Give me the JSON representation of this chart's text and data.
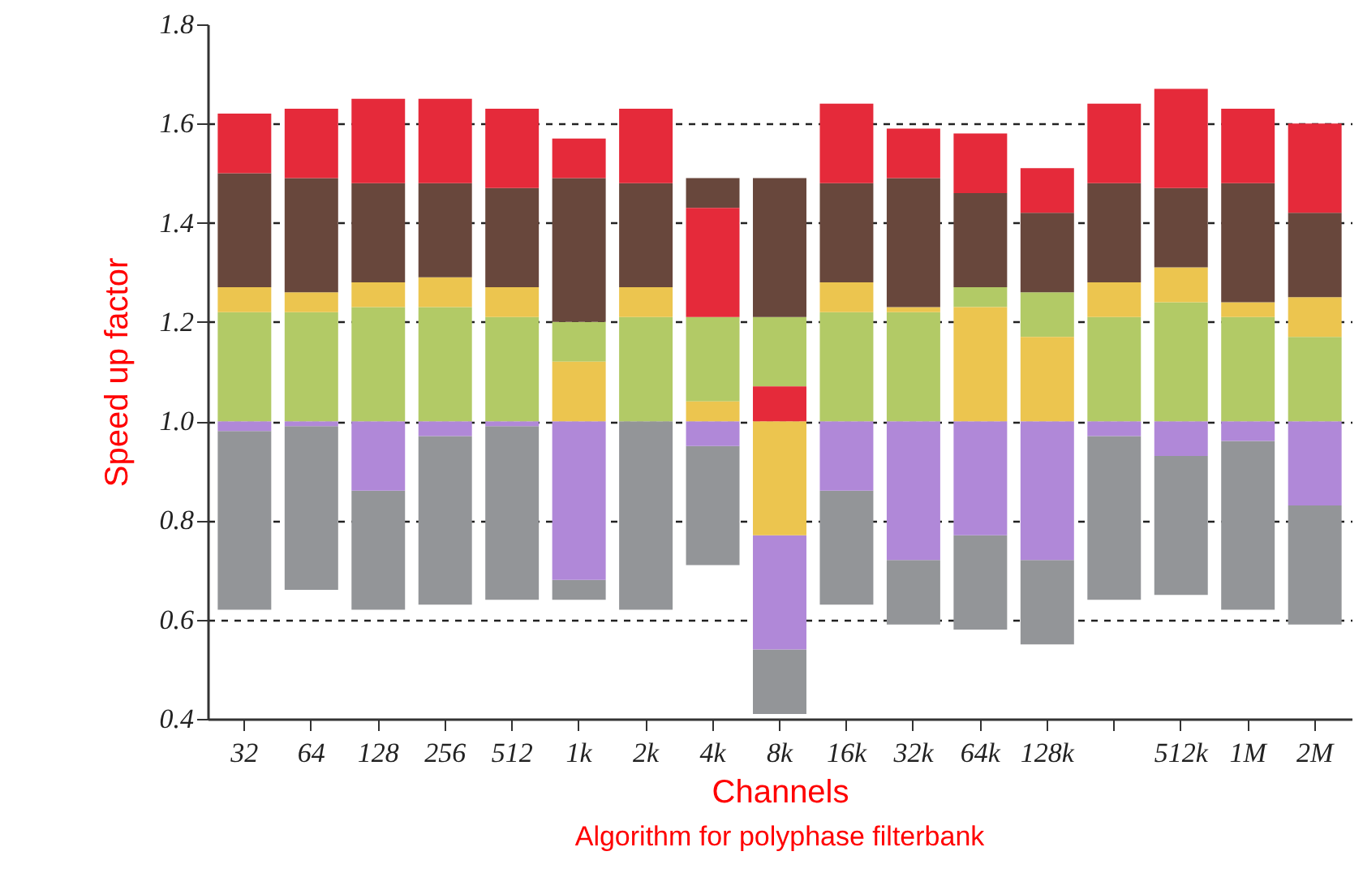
{
  "chart_data": {
    "type": "bar",
    "xlabel": "Channels",
    "ylabel": "Speed up factor",
    "annotations": [
      "Algorithm for polyphase filterbank"
    ],
    "categories": [
      "32",
      "64",
      "128",
      "256",
      "512",
      "1k",
      "2k",
      "4k",
      "8k",
      "16k",
      "32k",
      "64k",
      "128k",
      null,
      "512k",
      "1M",
      "2M"
    ],
    "ylim": [
      0.4,
      1.8
    ],
    "yticks": [
      {
        "value": 0.4,
        "label": "0.4"
      },
      {
        "value": 0.6,
        "label": "0.6"
      },
      {
        "value": 0.8,
        "label": "0.8"
      },
      {
        "value": 1,
        "label": "1.0"
      },
      {
        "value": 1.2,
        "label": "1.2"
      },
      {
        "value": 1.4,
        "label": "1.4"
      },
      {
        "value": 1.6,
        "label": "1.6"
      },
      {
        "value": 1.8,
        "label": "1.8"
      }
    ],
    "grid": "y",
    "line_style": "dashed",
    "series": [
      {
        "color": "#939598",
        "base": [
          0.62,
          0.66,
          0.62,
          0.63,
          0.64,
          0.64,
          0.62,
          0.71,
          0.41,
          0.63,
          0.59,
          0.58,
          0.55,
          0.64,
          0.65,
          0.62,
          0.59
        ],
        "values": [
          0.36,
          0.33,
          0.24,
          0.34,
          0.35,
          0.04,
          0.38,
          0.24,
          0.13,
          0.23,
          0.13,
          0.19,
          0.17,
          0.33,
          0.28,
          0.34,
          0.24
        ]
      },
      {
        "color": "#b088d8",
        "base": [
          0.98,
          0.99,
          0.86,
          0.97,
          0.99,
          0.68,
          null,
          0.95,
          0.54,
          0.86,
          0.72,
          0.77,
          0.72,
          0.97,
          0.93,
          0.96,
          0.83
        ],
        "values": [
          0.02,
          0.01,
          0.14,
          0.03,
          0.01,
          0.32,
          null,
          0.05,
          0.23,
          0.14,
          0.28,
          0.23,
          0.28,
          0.03,
          0.07,
          0.04,
          0.17
        ]
      },
      {
        "color": "#b2ca66",
        "base": [
          1.0,
          1.0,
          1.0,
          1.0,
          1.0,
          1.12,
          1.0,
          1.04,
          1.07,
          1.0,
          1.0,
          1.23,
          1.17,
          1.0,
          1.0,
          1.0,
          1.0
        ],
        "values": [
          0.22,
          0.22,
          0.23,
          0.23,
          0.21,
          0.08,
          0.21,
          0.17,
          0.14,
          0.22,
          0.22,
          0.04,
          0.09,
          0.21,
          0.24,
          0.21,
          0.17
        ]
      },
      {
        "color": "#ecc54f",
        "base": [
          1.22,
          1.22,
          1.23,
          1.23,
          1.21,
          1.0,
          1.21,
          1.0,
          0.77,
          1.22,
          1.22,
          1.0,
          1.0,
          1.21,
          1.24,
          1.21,
          1.17
        ],
        "values": [
          0.05,
          0.04,
          0.05,
          0.06,
          0.06,
          0.12,
          0.06,
          0.04,
          0.23,
          0.06,
          0.01,
          0.23,
          0.17,
          0.07,
          0.07,
          0.03,
          0.08
        ]
      },
      {
        "color": "#68473c",
        "base": [
          1.27,
          1.26,
          1.28,
          1.29,
          1.27,
          1.2,
          1.27,
          1.43,
          1.21,
          1.28,
          1.23,
          1.27,
          1.26,
          1.28,
          1.31,
          1.24,
          1.25
        ],
        "values": [
          0.23,
          0.23,
          0.2,
          0.19,
          0.2,
          0.29,
          0.21,
          0.06,
          0.28,
          0.2,
          0.26,
          0.19,
          0.16,
          0.2,
          0.16,
          0.24,
          0.17
        ]
      },
      {
        "color": "#e52a3a",
        "base": [
          1.5,
          1.49,
          1.48,
          1.48,
          1.47,
          1.49,
          1.48,
          1.21,
          1.0,
          1.48,
          1.49,
          1.46,
          1.42,
          1.48,
          1.47,
          1.48,
          1.42
        ],
        "values": [
          0.12,
          0.14,
          0.17,
          0.17,
          0.16,
          0.08,
          0.15,
          0.22,
          0.07,
          0.16,
          0.1,
          0.12,
          0.09,
          0.16,
          0.2,
          0.15,
          0.18
        ]
      }
    ]
  }
}
